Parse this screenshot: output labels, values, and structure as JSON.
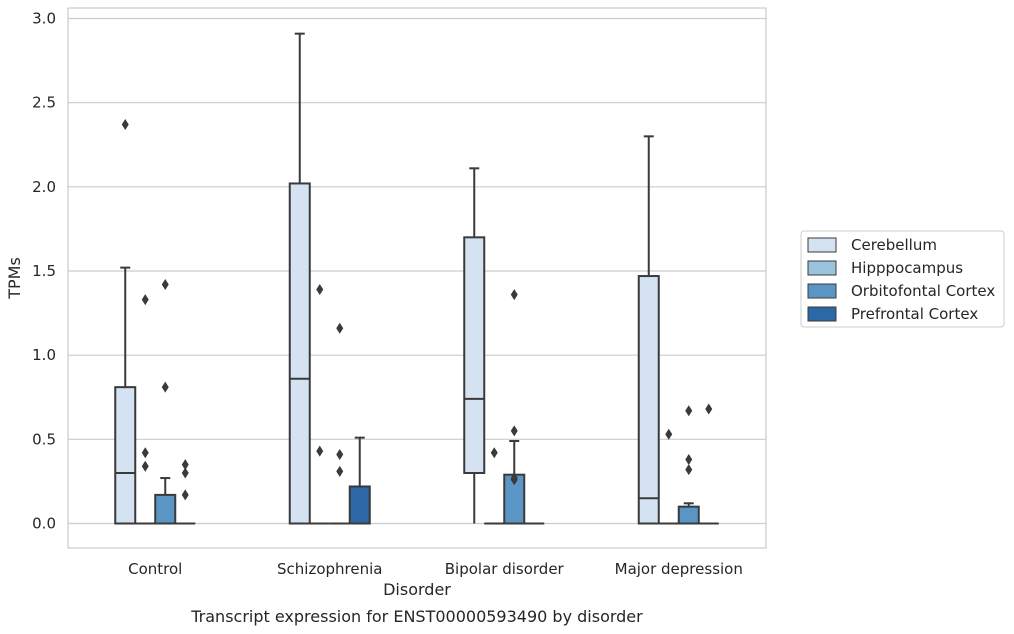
{
  "caption": "Transcript expression for ENST00000593490 by disorder",
  "chart_data": {
    "type": "box",
    "xlabel": "Disorder",
    "ylabel": "TPMs",
    "ylim": [
      -0.14,
      3.07
    ],
    "yticks": [
      "0.0",
      "0.5",
      "1.0",
      "1.5",
      "2.0",
      "2.5",
      "3.0"
    ],
    "ytick_values": [
      0.0,
      0.5,
      1.0,
      1.5,
      2.0,
      2.5,
      3.0
    ],
    "grid": "horizontal",
    "legend_position": "right",
    "categories": [
      "Control",
      "Schizophrenia",
      "Bipolar disorder",
      "Major depression"
    ],
    "series": [
      {
        "name": "Cerebellum",
        "color": "#d4e2f1",
        "boxes": [
          {
            "q1": 0.0,
            "median": 0.3,
            "q3": 0.81,
            "whislo": 0.0,
            "whishi": 1.52,
            "fliers": [
              2.37
            ]
          },
          {
            "q1": 0.0,
            "median": 0.86,
            "q3": 2.02,
            "whislo": 0.0,
            "whishi": 2.91,
            "fliers": []
          },
          {
            "q1": 0.3,
            "median": 0.74,
            "q3": 1.7,
            "whislo": 0.0,
            "whishi": 2.11,
            "fliers": []
          },
          {
            "q1": 0.0,
            "median": 0.15,
            "q3": 1.47,
            "whislo": 0.0,
            "whishi": 2.3,
            "fliers": []
          }
        ]
      },
      {
        "name": "Hipppocampus",
        "color": "#9cc3de",
        "boxes": [
          {
            "q1": 0.0,
            "median": 0.0,
            "q3": 0.0,
            "whislo": 0.0,
            "whishi": 0.0,
            "fliers": [
              0.34,
              0.42,
              1.33
            ]
          },
          {
            "q1": 0.0,
            "median": 0.0,
            "q3": 0.0,
            "whislo": 0.0,
            "whishi": 0.0,
            "fliers": [
              0.43,
              1.39
            ]
          },
          {
            "q1": 0.0,
            "median": 0.0,
            "q3": 0.0,
            "whislo": 0.0,
            "whishi": 0.0,
            "fliers": [
              0.42
            ]
          },
          {
            "q1": 0.0,
            "median": 0.0,
            "q3": 0.0,
            "whislo": 0.0,
            "whishi": 0.0,
            "fliers": [
              0.53
            ]
          }
        ]
      },
      {
        "name": "Orbitofontal Cortex",
        "color": "#5a96c5",
        "boxes": [
          {
            "q1": 0.0,
            "median": 0.0,
            "q3": 0.17,
            "whislo": 0.0,
            "whishi": 0.27,
            "fliers": [
              0.81,
              1.42
            ]
          },
          {
            "q1": 0.0,
            "median": 0.0,
            "q3": 0.0,
            "whislo": 0.0,
            "whishi": 0.0,
            "fliers": [
              0.31,
              0.41,
              1.16
            ]
          },
          {
            "q1": 0.0,
            "median": 0.0,
            "q3": 0.29,
            "whislo": 0.0,
            "whishi": 0.49,
            "fliers": [
              0.26,
              0.27,
              0.55,
              1.36
            ]
          },
          {
            "q1": 0.0,
            "median": 0.0,
            "q3": 0.1,
            "whislo": 0.0,
            "whishi": 0.12,
            "fliers": [
              0.32,
              0.38,
              0.67
            ]
          }
        ]
      },
      {
        "name": "Prefrontal Cortex",
        "color": "#2c68a6",
        "boxes": [
          {
            "q1": 0.0,
            "median": 0.0,
            "q3": 0.0,
            "whislo": 0.0,
            "whishi": 0.0,
            "fliers": [
              0.17,
              0.3,
              0.35
            ]
          },
          {
            "q1": 0.0,
            "median": 0.0,
            "q3": 0.22,
            "whislo": 0.0,
            "whishi": 0.51,
            "fliers": []
          },
          {
            "q1": 0.0,
            "median": 0.0,
            "q3": 0.0,
            "whislo": 0.0,
            "whishi": 0.0,
            "fliers": []
          },
          {
            "q1": 0.0,
            "median": 0.0,
            "q3": 0.0,
            "whislo": 0.0,
            "whishi": 0.0,
            "fliers": [
              0.68
            ]
          }
        ]
      }
    ]
  }
}
